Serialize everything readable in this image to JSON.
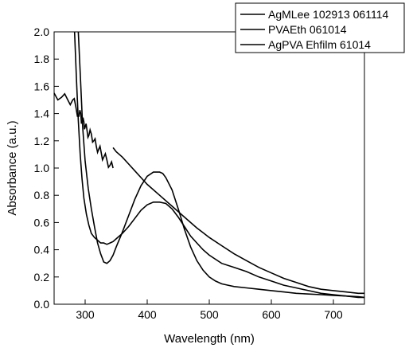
{
  "chart_data": {
    "type": "line",
    "title": "",
    "xlabel": "Wavelength (nm)",
    "ylabel": "Absorbance (a.u.)",
    "xlim": [
      250,
      750
    ],
    "ylim": [
      0.0,
      2.0
    ],
    "xticks": [
      300,
      400,
      500,
      600,
      700
    ],
    "yticks": [
      0.0,
      0.2,
      0.4,
      0.6,
      0.8,
      1.0,
      1.2,
      1.4,
      1.6,
      1.8,
      2.0
    ],
    "ytick_labels": [
      "0.0",
      "0.2",
      "0.4",
      "0.6",
      "0.8",
      "1.0",
      "1.2",
      "1.4",
      "1.6",
      "1.8",
      "2.0"
    ],
    "grid": false,
    "legend_position": "top-right",
    "series": [
      {
        "name": "AgMLee 102913 061114",
        "color": "#000000",
        "x": [
          250,
          262,
          272,
          280,
          285,
          290,
          293,
          295,
          298,
          300,
          303,
          306,
          310,
          314,
          318,
          322,
          326,
          330,
          335,
          340,
          345
        ],
        "y": [
          1.55,
          1.52,
          1.5,
          1.5,
          1.45,
          1.38,
          1.4,
          1.33,
          1.34,
          1.3,
          1.28,
          1.24,
          1.25,
          1.2,
          1.16,
          1.14,
          1.11,
          1.08,
          1.06,
          1.02,
          1.0
        ],
        "jitter": 0.035
      },
      {
        "name": "PVAEth 061014",
        "color": "#000000",
        "x": [
          289,
          292,
          296,
          300,
          305,
          310,
          315,
          320,
          325,
          330,
          335,
          340,
          345,
          350,
          360,
          370,
          380,
          390,
          400,
          410,
          420,
          425,
          430,
          440,
          450,
          460,
          470,
          480,
          490,
          500,
          510,
          520,
          530,
          540,
          560,
          580,
          600,
          620,
          640,
          660,
          680,
          700,
          720,
          740,
          750
        ],
        "y": [
          2.0,
          1.7,
          1.3,
          1.05,
          0.85,
          0.7,
          0.57,
          0.45,
          0.37,
          0.31,
          0.3,
          0.32,
          0.36,
          0.42,
          0.53,
          0.65,
          0.77,
          0.87,
          0.94,
          0.97,
          0.97,
          0.96,
          0.93,
          0.84,
          0.7,
          0.55,
          0.42,
          0.32,
          0.25,
          0.2,
          0.17,
          0.15,
          0.14,
          0.13,
          0.12,
          0.11,
          0.1,
          0.09,
          0.08,
          0.075,
          0.07,
          0.065,
          0.06,
          0.055,
          0.05
        ]
      },
      {
        "name": "AgPVA Ehfilm 61014",
        "color": "#000000",
        "x": [
          283,
          286,
          289,
          292,
          295,
          298,
          302,
          306,
          310,
          315,
          320,
          325,
          330,
          335,
          340,
          345,
          350,
          360,
          370,
          380,
          390,
          400,
          410,
          420,
          430,
          440,
          450,
          460,
          470,
          480,
          490,
          500,
          520,
          540,
          560,
          580,
          600,
          620,
          640,
          660,
          680,
          700,
          720,
          740,
          750
        ],
        "y": [
          2.0,
          1.65,
          1.35,
          1.1,
          0.92,
          0.78,
          0.66,
          0.58,
          0.52,
          0.49,
          0.47,
          0.45,
          0.45,
          0.44,
          0.45,
          0.46,
          0.48,
          0.52,
          0.57,
          0.63,
          0.69,
          0.73,
          0.75,
          0.75,
          0.74,
          0.7,
          0.64,
          0.57,
          0.5,
          0.45,
          0.4,
          0.36,
          0.3,
          0.27,
          0.24,
          0.2,
          0.17,
          0.14,
          0.12,
          0.1,
          0.08,
          0.07,
          0.06,
          0.05,
          0.05
        ]
      },
      {
        "name": "",
        "color": "#000000",
        "x": [
          345,
          350,
          360,
          370,
          380,
          390,
          400,
          420,
          440,
          460,
          480,
          500,
          520,
          540,
          560,
          580,
          600,
          620,
          640,
          660,
          680,
          700,
          720,
          740,
          750
        ],
        "y": [
          1.15,
          1.12,
          1.08,
          1.03,
          0.98,
          0.93,
          0.88,
          0.8,
          0.72,
          0.64,
          0.56,
          0.49,
          0.43,
          0.37,
          0.32,
          0.27,
          0.23,
          0.19,
          0.16,
          0.13,
          0.11,
          0.1,
          0.09,
          0.08,
          0.08
        ]
      }
    ]
  }
}
